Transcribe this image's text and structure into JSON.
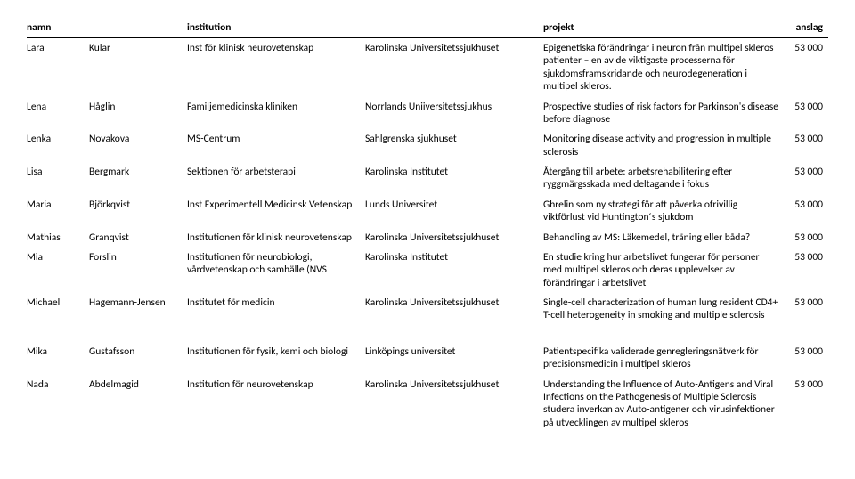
{
  "headers": {
    "name": "namn",
    "institution": "institution",
    "project": "projekt",
    "grant": "anslag"
  },
  "grant_display": "53 000",
  "rows": [
    {
      "first": "Lara",
      "last": "Kular",
      "institution": "Inst för klinisk neurovetenskap",
      "host": "Karolinska Universitetssjukhuset",
      "project": "Epigenetiska förändringar i neuron från multipel skleros patienter – en av de viktigaste processerna för sjukdomsframskridande och neurodegeneration i multipel skleros."
    },
    {
      "first": "Lena",
      "last": "Håglin",
      "institution": "Familjemedicinska kliniken",
      "host": "Norrlands Uniiversitetssjukhus",
      "project": "Prospective studies of risk factors for Parkinson's disease before diagnose"
    },
    {
      "first": "Lenka",
      "last": "Novakova",
      "institution": "MS-Centrum",
      "host": "Sahlgrenska sjukhuset",
      "project": "Monitoring disease activity and progression in multiple sclerosis"
    },
    {
      "first": "Lisa",
      "last": "Bergmark",
      "institution": "Sektionen för arbetsterapi",
      "host": "Karolinska Institutet",
      "project": "Återgång till arbete: arbetsrehabilitering efter ryggmärgsskada med deltagande i fokus"
    },
    {
      "first": "Maria",
      "last": "Björkqvist",
      "institution": "Inst Experimentell Medicinsk Vetenskap",
      "host": "Lunds Universitet",
      "project": "Ghrelin som ny strategi för att påverka ofrivillig viktförlust vid Huntington´s sjukdom"
    },
    {
      "first": "Mathias",
      "last": "Granqvist",
      "institution": "Institutionen för klinisk neurovetenskap",
      "host": "Karolinska Universitetssjukhuset",
      "project": "Behandling av MS: Läkemedel, träning eller båda?"
    },
    {
      "first": "Mia",
      "last": "Forslin",
      "institution": "Institutionen för neurobiologi, vårdvetenskap och samhälle (NVS",
      "host": "Karolinska Institutet",
      "project": "En studie kring hur arbetslivet fungerar för personer med multipel skleros och deras upplevelser av förändringar i arbetslivet"
    },
    {
      "first": "Michael",
      "last": "Hagemann-Jensen",
      "institution": "Institutet för medicin",
      "host": "Karolinska Universitetssjukhuset",
      "project": "Single-cell characterization of human lung resident CD4+ T-cell heterogeneity in smoking and multiple sclerosis"
    },
    {
      "first": "Mika",
      "last": "Gustafsson",
      "institution": "Institutionen för fysik, kemi och biologi",
      "host": "Linköpings universitet",
      "project": "Patientspecifika validerade genregleringsnätverk för precisionsmedicin i multipel skleros"
    },
    {
      "first": "Nada",
      "last": "Abdelmagid",
      "institution": "Institution för neurovetenskap",
      "host": "Karolinska Universitetssjukhuset",
      "project": "Understanding the Influence of Auto-Antigens and Viral Infections on the Pathogenesis of Multiple Sclerosis studera inverkan av Auto-antigener och virusinfektioner på utvecklingen av multipel skleros"
    }
  ]
}
